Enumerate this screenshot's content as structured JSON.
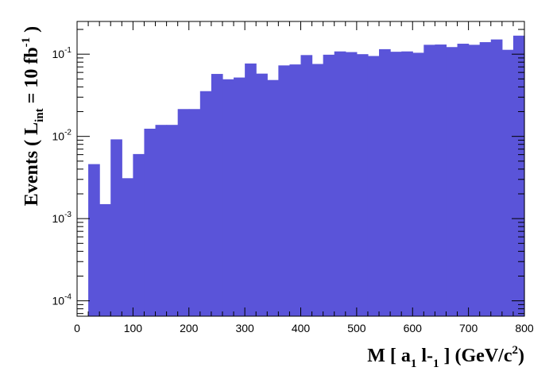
{
  "chart_data": {
    "type": "bar",
    "x_bin_width": 20,
    "x": [
      10,
      30,
      50,
      70,
      90,
      110,
      130,
      150,
      170,
      190,
      210,
      230,
      250,
      270,
      290,
      310,
      330,
      350,
      370,
      390,
      410,
      430,
      450,
      470,
      490,
      510,
      530,
      550,
      570,
      590,
      610,
      630,
      650,
      670,
      690,
      710,
      730,
      750,
      770,
      790
    ],
    "values": [
      0,
      0.0046,
      0.0015,
      0.0092,
      0.0031,
      0.0061,
      0.0124,
      0.0138,
      0.0138,
      0.0215,
      0.0215,
      0.0355,
      0.0575,
      0.0495,
      0.052,
      0.077,
      0.058,
      0.0485,
      0.073,
      0.075,
      0.0975,
      0.076,
      0.0985,
      0.108,
      0.106,
      0.1,
      0.095,
      0.115,
      0.107,
      0.108,
      0.104,
      0.13,
      0.131,
      0.122,
      0.134,
      0.13,
      0.14,
      0.151,
      0.113,
      0.168
    ],
    "xlim": [
      0,
      800
    ],
    "ylim": [
      6.5e-05,
      0.25
    ],
    "y_scale": "log",
    "x_ticks": [
      "0",
      "100",
      "200",
      "300",
      "400",
      "500",
      "600",
      "700",
      "800"
    ],
    "y_ticks": [
      {
        "base": "10",
        "exp": "-4"
      },
      {
        "base": "10",
        "exp": "-3"
      },
      {
        "base": "10",
        "exp": "-2"
      },
      {
        "base": "10",
        "exp": "-1"
      }
    ],
    "ylabel": {
      "main": "Events  ( L",
      "sub": "int",
      "mid": " = 10 fb",
      "sup": "-1",
      "end": " )"
    },
    "xlabel": {
      "p1": "M [ a",
      "s1": "1",
      "p2": " l-",
      "s2": "1",
      "p3": " ] (GeV/c",
      "sup": "2",
      "p4": ")"
    },
    "fill_color": "#5a54d9",
    "grid": false,
    "legend": "none"
  }
}
